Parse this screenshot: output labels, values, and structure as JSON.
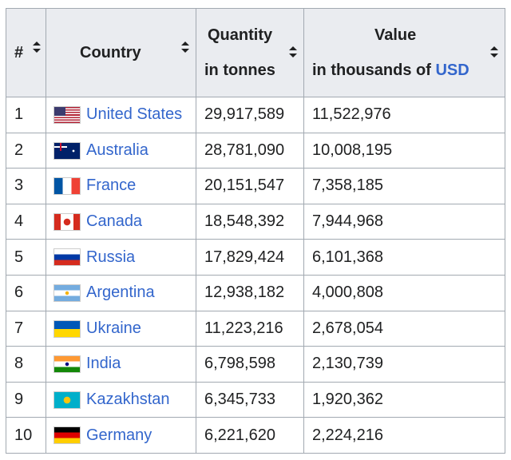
{
  "header": {
    "rank": "#",
    "country": "Country",
    "quantity": {
      "title": "Quantity",
      "unit": "in tonnes"
    },
    "value": {
      "title": "Value",
      "unit": "in thousands of",
      "link": "USD"
    }
  },
  "rows": [
    {
      "rank": "1",
      "country": "United States",
      "quantity": "29,917,589",
      "value": "11,522,976"
    },
    {
      "rank": "2",
      "country": "Australia",
      "quantity": "28,781,090",
      "value": "10,008,195"
    },
    {
      "rank": "3",
      "country": "France",
      "quantity": "20,151,547",
      "value": "7,358,185"
    },
    {
      "rank": "4",
      "country": "Canada",
      "quantity": "18,548,392",
      "value": "7,944,968"
    },
    {
      "rank": "5",
      "country": "Russia",
      "quantity": "17,829,424",
      "value": "6,101,368"
    },
    {
      "rank": "6",
      "country": "Argentina",
      "quantity": "12,938,182",
      "value": "4,000,808"
    },
    {
      "rank": "7",
      "country": "Ukraine",
      "quantity": "11,223,216",
      "value": "2,678,054"
    },
    {
      "rank": "8",
      "country": "India",
      "quantity": "6,798,598",
      "value": "2,130,739"
    },
    {
      "rank": "9",
      "country": "Kazakhstan",
      "quantity": "6,345,733",
      "value": "1,920,362"
    },
    {
      "rank": "10",
      "country": "Germany",
      "quantity": "6,221,620",
      "value": "2,224,216"
    }
  ]
}
